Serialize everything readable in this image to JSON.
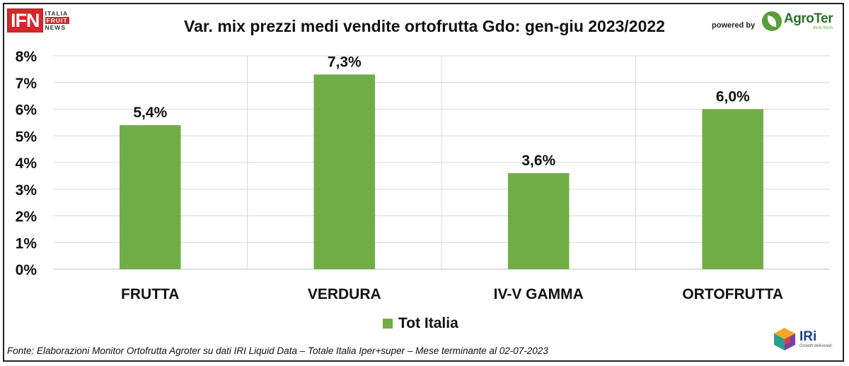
{
  "header": {
    "logo_left": {
      "mark": "IFN",
      "line1": "ITALIA",
      "line2": "FRUIT",
      "line3": "NEWS"
    },
    "powered_by": "powered by",
    "logo_right": {
      "name": "AgroTer",
      "tagline": "think fresh"
    }
  },
  "footer": {
    "source": "Fonte: Elaborazioni Monitor Ortofrutta Agroter su dati IRI Liquid Data – Totale Italia Iper+super – Mese terminante al 02-07-2023",
    "logo": {
      "name": "IRi",
      "tagline": "Growth delivered."
    }
  },
  "colors": {
    "bar": "#70ad47",
    "grid": "#d9d9d9",
    "text": "#111111"
  },
  "chart_data": {
    "type": "bar",
    "title": "Var. mix prezzi medi vendite ortofrutta Gdo: gen-giu 2023/2022",
    "categories": [
      "FRUTTA",
      "VERDURA",
      "IV-V GAMMA",
      "ORTOFRUTTA"
    ],
    "series": [
      {
        "name": "Tot Italia",
        "values": [
          5.4,
          7.3,
          3.6,
          6.0
        ]
      }
    ],
    "data_labels": [
      "5,4%",
      "7,3%",
      "3,6%",
      "6,0%"
    ],
    "ylim": [
      0,
      8
    ],
    "yticks": [
      0,
      1,
      2,
      3,
      4,
      5,
      6,
      7,
      8
    ],
    "ytick_labels": [
      "0%",
      "1%",
      "2%",
      "3%",
      "4%",
      "5%",
      "6%",
      "7%",
      "8%"
    ],
    "grid": true,
    "legend_position": "bottom"
  }
}
